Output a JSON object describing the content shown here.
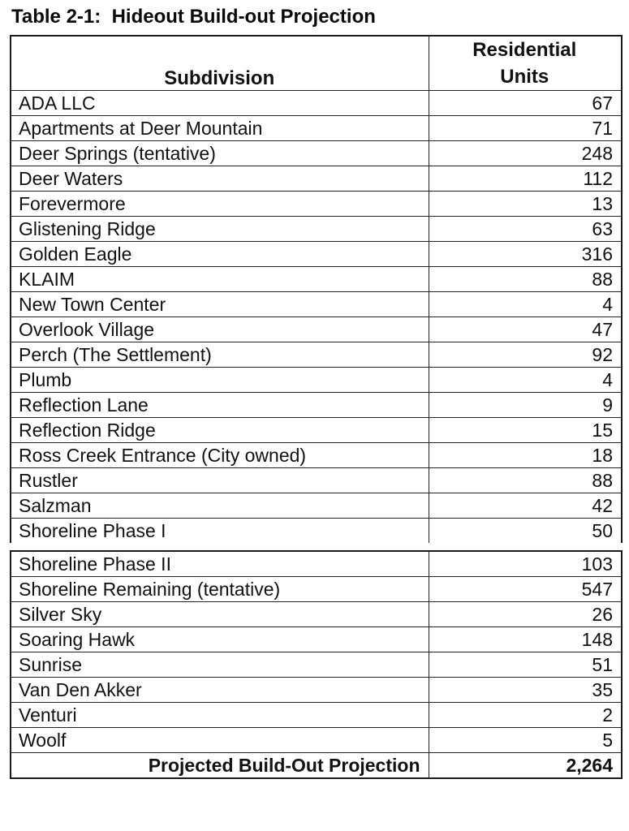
{
  "title": "Table 2-1:  Hideout Build-out Projection",
  "colors": {
    "background": "#ffffff",
    "text": "#111111",
    "border": "#222222"
  },
  "table": {
    "header": {
      "subdivision": "Subdivision",
      "units_line1": "Residential",
      "units_line2": "Units"
    },
    "rows_part1": [
      {
        "name": "ADA LLC",
        "units": "67"
      },
      {
        "name": "Apartments at Deer Mountain",
        "units": "71"
      },
      {
        "name": "Deer Springs (tentative)",
        "units": "248"
      },
      {
        "name": "Deer Waters",
        "units": "112"
      },
      {
        "name": "Forevermore",
        "units": "13"
      },
      {
        "name": "Glistening Ridge",
        "units": "63"
      },
      {
        "name": "Golden Eagle",
        "units": "316"
      },
      {
        "name": "KLAIM",
        "units": "88"
      },
      {
        "name": "New Town Center",
        "units": "4"
      },
      {
        "name": "Overlook Village",
        "units": "47"
      },
      {
        "name": "Perch (The Settlement)",
        "units": "92"
      },
      {
        "name": "Plumb",
        "units": "4"
      },
      {
        "name": "Reflection Lane",
        "units": "9"
      },
      {
        "name": "Reflection Ridge",
        "units": "15"
      },
      {
        "name": "Ross Creek Entrance (City owned)",
        "units": "18"
      },
      {
        "name": "Rustler",
        "units": "88"
      },
      {
        "name": "Salzman",
        "units": "42"
      },
      {
        "name": "Shoreline Phase I",
        "units": "50"
      }
    ],
    "rows_part2": [
      {
        "name": "Shoreline Phase II",
        "units": "103"
      },
      {
        "name": "Shoreline Remaining (tentative)",
        "units": "547"
      },
      {
        "name": "Silver Sky",
        "units": "26"
      },
      {
        "name": "Soaring Hawk",
        "units": "148"
      },
      {
        "name": "Sunrise",
        "units": "51"
      },
      {
        "name": "Van Den Akker",
        "units": "35"
      },
      {
        "name": "Venturi",
        "units": "2"
      },
      {
        "name": "Woolf",
        "units": "5"
      }
    ],
    "total": {
      "label": "Projected Build-Out Projection",
      "value": "2,264"
    }
  }
}
